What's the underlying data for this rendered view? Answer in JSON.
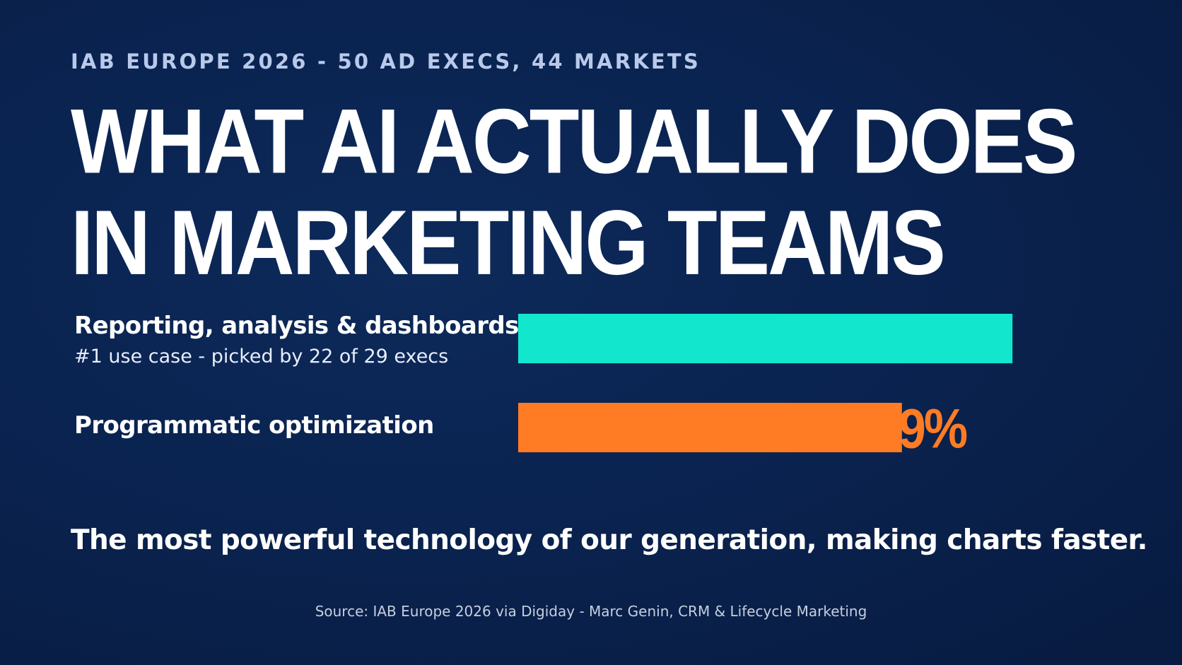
{
  "eyebrow": "IAB EUROPE 2026 - 50 AD EXECS, 44 MARKETS",
  "headline": {
    "line1": "WHAT AI ACTUALLY DOES",
    "line2": "IN MARKETING TEAMS"
  },
  "tagline": "The most powerful technology of our generation, making charts faster.",
  "source": "Source: IAB Europe 2026 via Digiday - Marc Genin, CRM & Lifecycle Marketing",
  "colors": {
    "background": "#0a2350",
    "bar_primary": "#12e6cc",
    "bar_secondary": "#ff7b24",
    "text": "#ffffff",
    "eyebrow": "#b9c9ea"
  },
  "chart_data": {
    "type": "bar",
    "orientation": "horizontal",
    "categories": [
      "Reporting, analysis & dashboards",
      "Programmatic optimization"
    ],
    "subtitles": [
      "#1 use case - picked by 22 of 29 execs",
      ""
    ],
    "values": [
      76,
      59
    ],
    "value_labels": [
      "",
      "59%"
    ],
    "unit": "%",
    "xlim": [
      0,
      100
    ],
    "colors": [
      "#12e6cc",
      "#ff7b24"
    ],
    "grid": false,
    "legend": "none"
  }
}
